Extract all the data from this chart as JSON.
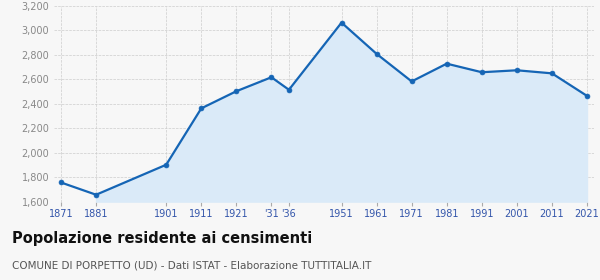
{
  "years": [
    1871,
    1881,
    1901,
    1911,
    1921,
    1931,
    1936,
    1951,
    1961,
    1971,
    1981,
    1991,
    2001,
    2011,
    2021
  ],
  "population": [
    1756,
    1656,
    1901,
    2361,
    2501,
    2615,
    2513,
    3061,
    2806,
    2581,
    2726,
    2656,
    2672,
    2647,
    2463
  ],
  "x_labels": [
    "1871",
    "1881",
    "1901",
    "1911",
    "1921",
    "'31",
    "'36",
    "1951",
    "1961",
    "1971",
    "1981",
    "1991",
    "2001",
    "2011",
    "2021"
  ],
  "ylim": [
    1600,
    3200
  ],
  "yticks": [
    1600,
    1800,
    2000,
    2200,
    2400,
    2600,
    2800,
    3000,
    3200
  ],
  "line_color": "#1565b5",
  "fill_color": "#daeaf8",
  "marker_color": "#1565b5",
  "bg_color": "#f7f7f7",
  "plot_bg_color": "#f7f7f7",
  "grid_color": "#cccccc",
  "xtick_color": "#3355aa",
  "ytick_color": "#888888",
  "title": "Popolazione residente ai censimenti",
  "subtitle": "COMUNE DI PORPETTO (UD) - Dati ISTAT - Elaborazione TUTTITALIA.IT",
  "title_fontsize": 10.5,
  "subtitle_fontsize": 7.5
}
